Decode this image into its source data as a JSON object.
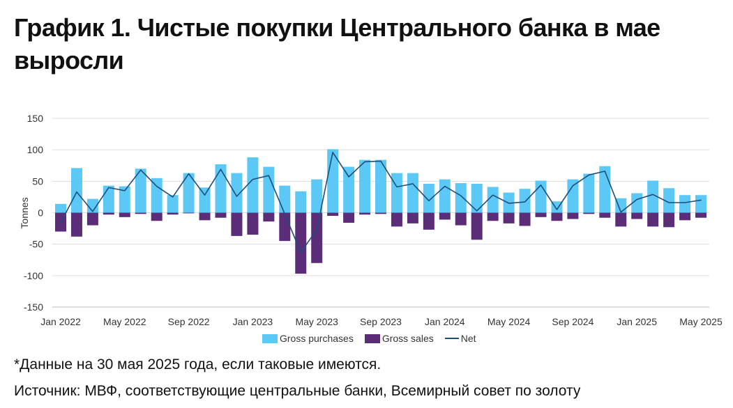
{
  "chart_data": {
    "type": "bar",
    "title": "График 1. Чистые покупки Центрального банка в мае выросли",
    "ylabel": "Tonnes",
    "ylim": [
      -150,
      150
    ],
    "yticks": [
      150,
      100,
      50,
      0,
      -50,
      -100,
      -150
    ],
    "x": [
      "Jan 2022",
      "Feb 2022",
      "Mar 2022",
      "Apr 2022",
      "May 2022",
      "Jun 2022",
      "Jul 2022",
      "Aug 2022",
      "Sep 2022",
      "Oct 2022",
      "Nov 2022",
      "Dec 2022",
      "Jan 2023",
      "Feb 2023",
      "Mar 2023",
      "Apr 2023",
      "May 2023",
      "Jun 2023",
      "Jul 2023",
      "Aug 2023",
      "Sep 2023",
      "Oct 2023",
      "Nov 2023",
      "Dec 2023",
      "Jan 2024",
      "Feb 2024",
      "Mar 2024",
      "Apr 2024",
      "May 2024",
      "Jun 2024",
      "Jul 2024",
      "Aug 2024",
      "Sep 2024",
      "Oct 2024",
      "Nov 2024",
      "Dec 2024",
      "Jan 2025",
      "Feb 2025",
      "Mar 2025",
      "Apr 2025",
      "May 2025"
    ],
    "xticks": [
      "Jan 2022",
      "May 2022",
      "Sep 2022",
      "Jan 2023",
      "May 2023",
      "Sep 2023",
      "Jan 2024",
      "May 2024",
      "Sep 2024",
      "Jan 2025",
      "May 2025"
    ],
    "series": [
      {
        "name": "Gross purchases",
        "type": "bar",
        "color": "#5BC8F5",
        "values": [
          14,
          71,
          22,
          43,
          42,
          70,
          55,
          28,
          63,
          40,
          77,
          63,
          88,
          73,
          43,
          34,
          53,
          101,
          73,
          84,
          84,
          63,
          63,
          46,
          53,
          47,
          46,
          41,
          32,
          38,
          51,
          18,
          53,
          62,
          74,
          23,
          31,
          51,
          39,
          28,
          28
        ]
      },
      {
        "name": "Gross sales",
        "type": "bar",
        "color": "#5B2D79",
        "values": [
          -30,
          -38,
          -20,
          -3,
          -7,
          -2,
          -13,
          -3,
          -1,
          -12,
          -8,
          -37,
          -35,
          -14,
          -45,
          -97,
          -80,
          -5,
          -16,
          -3,
          -2,
          -22,
          -17,
          -27,
          -11,
          -20,
          -43,
          -13,
          -17,
          -21,
          -7,
          -13,
          -10,
          -2,
          -8,
          -22,
          -10,
          -22,
          -23,
          -12,
          -8
        ]
      },
      {
        "name": "Net",
        "type": "line",
        "color": "#1F4E79",
        "values": [
          -16,
          33,
          2,
          40,
          35,
          68,
          42,
          25,
          62,
          28,
          69,
          26,
          53,
          59,
          -2,
          -63,
          -27,
          96,
          57,
          81,
          82,
          41,
          46,
          19,
          42,
          27,
          3,
          28,
          15,
          17,
          44,
          5,
          43,
          60,
          66,
          1,
          21,
          29,
          16,
          16,
          20
        ]
      }
    ],
    "grid": true,
    "legend": "bottom"
  },
  "notes": {
    "footnote": "*Данные на 30 мая 2025 года, если таковые имеются.",
    "source": "Источник: МВФ, соответствующие центральные банки, Всемирный совет по золоту"
  }
}
